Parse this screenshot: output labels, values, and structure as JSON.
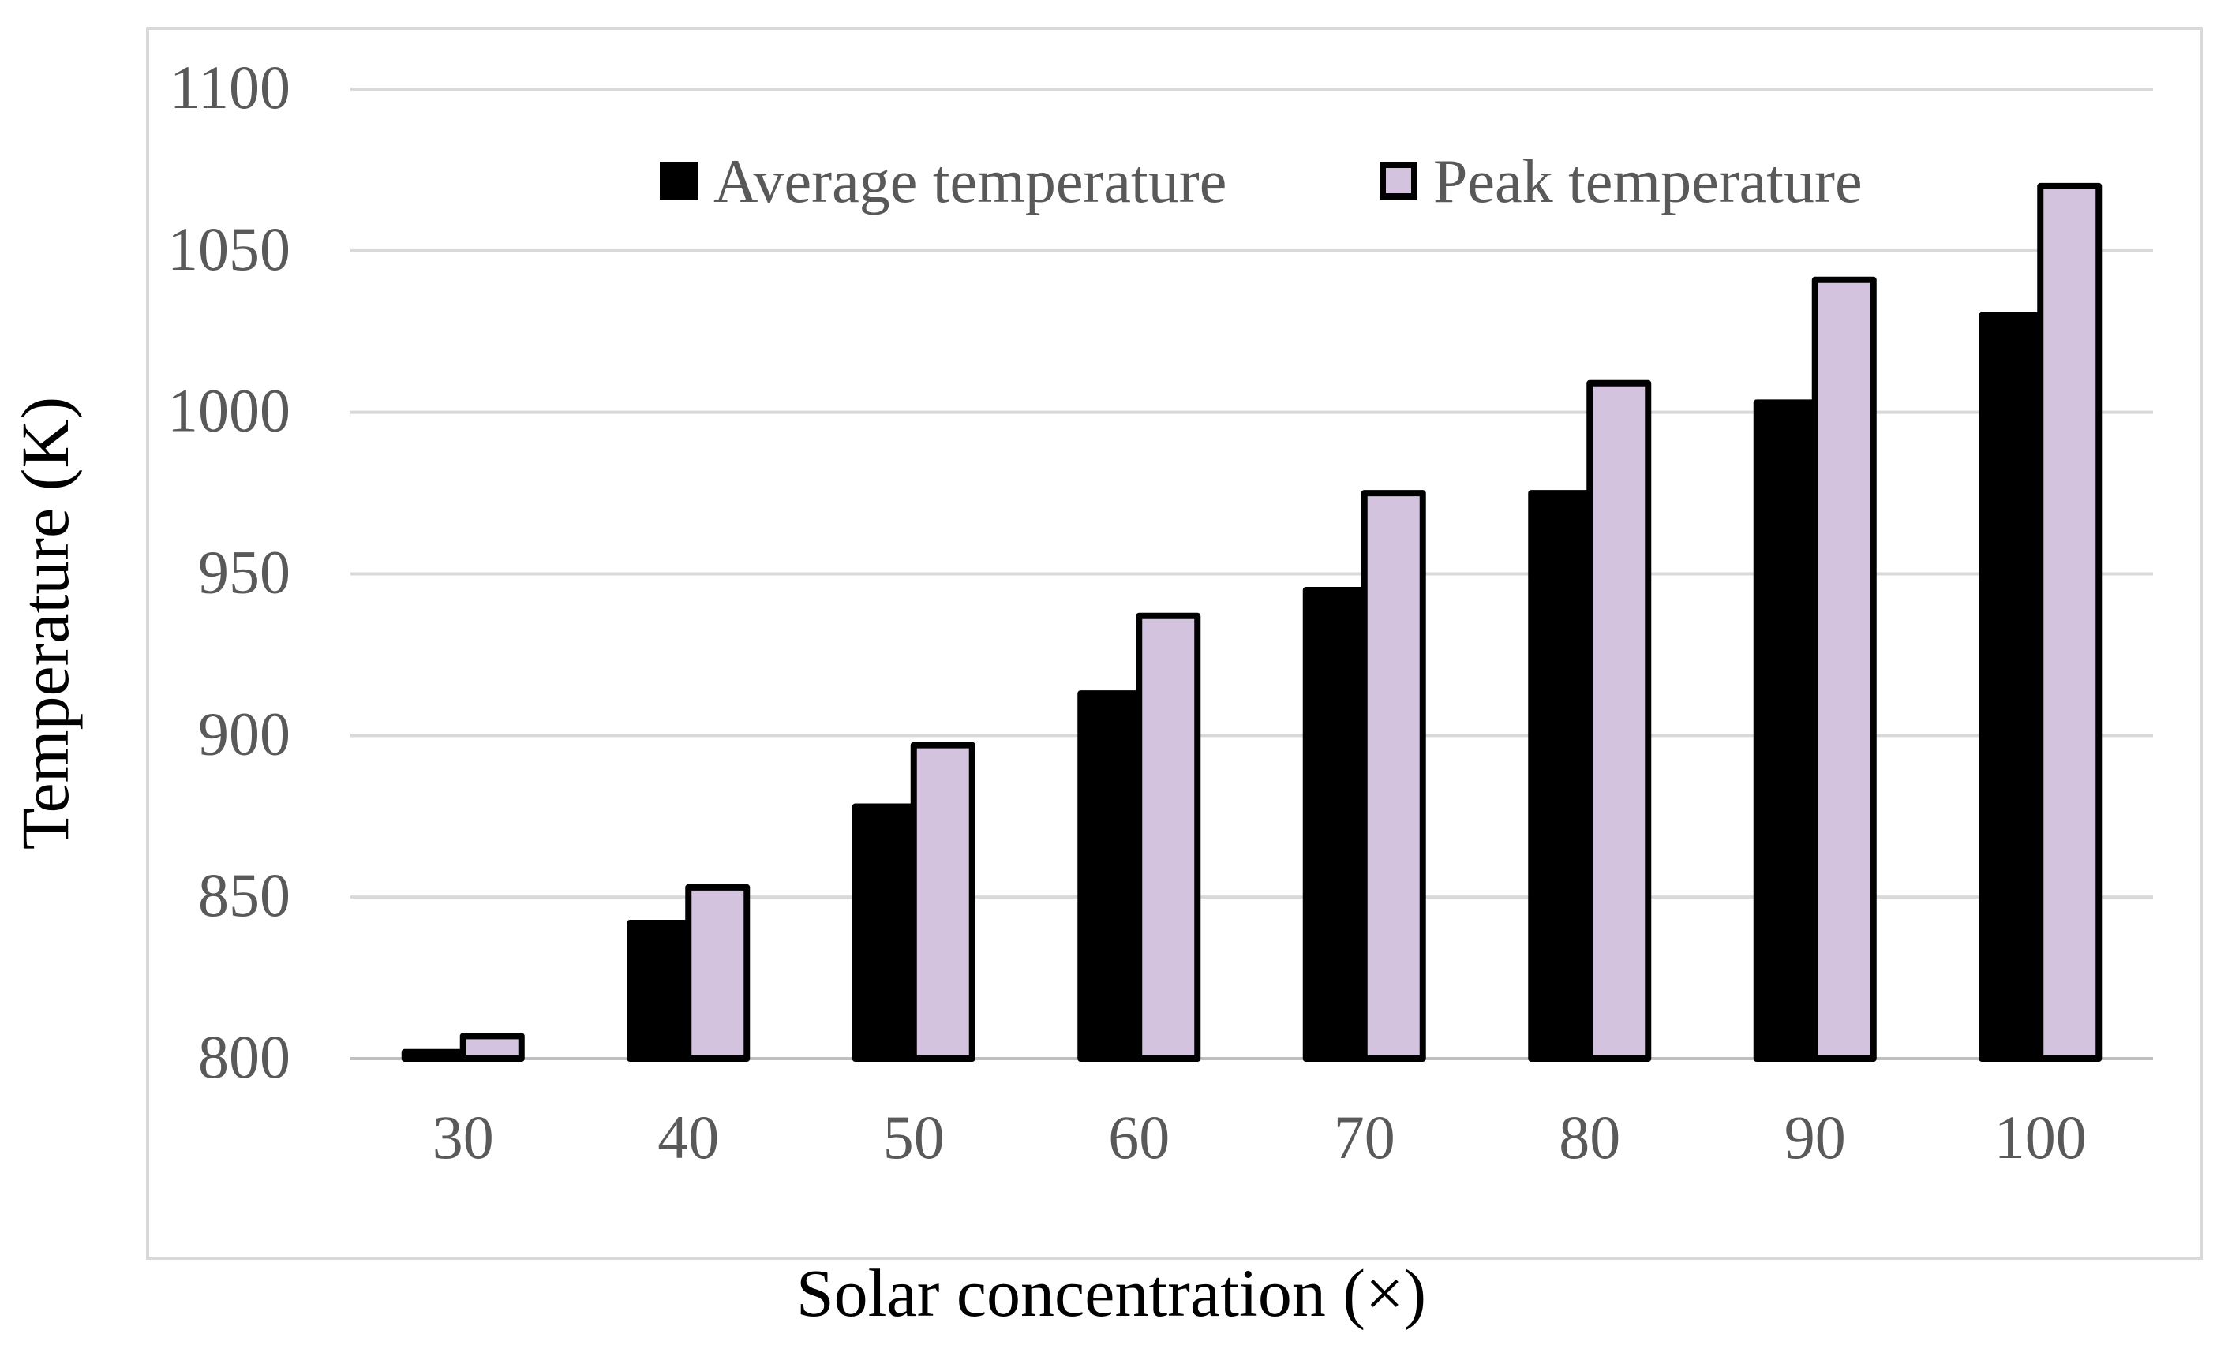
{
  "chart_data": {
    "type": "bar",
    "title": "",
    "xlabel": "Solar concentration (×)",
    "ylabel": "Temperature (K)",
    "categories": [
      "30",
      "40",
      "50",
      "60",
      "70",
      "80",
      "90",
      "100"
    ],
    "series": [
      {
        "name": "Average temperature",
        "values": [
          802,
          842,
          878,
          913,
          945,
          975,
          1003,
          1030
        ],
        "color": "#000000"
      },
      {
        "name": "Peak temperature",
        "values": [
          807,
          853,
          897,
          937,
          975,
          1009,
          1041,
          1070
        ],
        "color": "#d3c3de"
      }
    ],
    "ylim": [
      800,
      1100
    ],
    "yticks": [
      "800",
      "850",
      "900",
      "950",
      "1000",
      "1050",
      "1100"
    ],
    "grid": true,
    "legend_position": "top-right",
    "colors": {
      "gridline": "#d9d9d9",
      "tick_text": "#595959",
      "axis_title": "#000000",
      "frame": "#d9d9d9"
    }
  }
}
